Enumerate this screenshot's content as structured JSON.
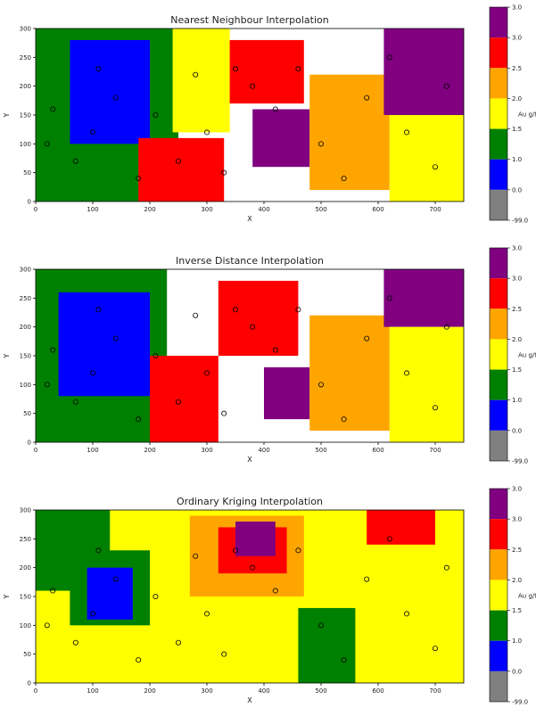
{
  "chart_data": [
    {
      "type": "heatmap",
      "title": "Nearest Neighbour Interpolation",
      "xlabel": "X",
      "ylabel": "Y",
      "xlim": [
        0,
        750
      ],
      "ylim": [
        0,
        300
      ],
      "xticks": [
        0,
        100,
        200,
        300,
        400,
        500,
        600,
        700
      ],
      "yticks": [
        0,
        50,
        100,
        150,
        200,
        250,
        300
      ],
      "xtick_labels": [
        "0",
        "100",
        "200",
        "300",
        "400",
        "500",
        "600",
        "700"
      ],
      "ytick_labels": [
        "0",
        "50",
        "100",
        "150",
        "200",
        "250",
        "300"
      ],
      "colorbar": {
        "label": "Au g/t",
        "tick_labels": [
          "3.0",
          "3.0",
          "2.5",
          "2.0",
          "1.5",
          "1.0",
          "0.0",
          "-99.0"
        ],
        "bins": [
          {
            "range": [
              3.0,
              3.0
            ],
            "color": "#800080"
          },
          {
            "range": [
              2.5,
              3.0
            ],
            "color": "#ff0000"
          },
          {
            "range": [
              2.0,
              2.5
            ],
            "color": "#ffa500"
          },
          {
            "range": [
              1.5,
              2.0
            ],
            "color": "#ffff00"
          },
          {
            "range": [
              1.0,
              1.5
            ],
            "color": "#008000"
          },
          {
            "range": [
              0.0,
              1.0
            ],
            "color": "#0000ff"
          },
          {
            "range": [
              -99.0,
              0.0
            ],
            "color": "#808080"
          }
        ]
      },
      "regions": [
        {
          "x": [
            0,
            250
          ],
          "y": [
            0,
            300
          ],
          "grade": "1.0 - 1.5"
        },
        {
          "x": [
            60,
            200
          ],
          "y": [
            100,
            280
          ],
          "grade": "0.0 - 1.0"
        },
        {
          "x": [
            180,
            330
          ],
          "y": [
            0,
            110
          ],
          "grade": "2.5 - 3.0"
        },
        {
          "x": [
            240,
            340
          ],
          "y": [
            120,
            300
          ],
          "grade": "1.5 - 2.0"
        },
        {
          "x": [
            340,
            470
          ],
          "y": [
            170,
            280
          ],
          "grade": "2.5 - 3.0"
        },
        {
          "x": [
            380,
            480
          ],
          "y": [
            60,
            160
          ],
          "grade": "3.0"
        },
        {
          "x": [
            480,
            620
          ],
          "y": [
            20,
            220
          ],
          "grade": "2.0 - 2.5"
        },
        {
          "x": [
            610,
            750
          ],
          "y": [
            150,
            300
          ],
          "grade": "3.0"
        },
        {
          "x": [
            620,
            750
          ],
          "y": [
            0,
            150
          ],
          "grade": "1.5 - 2.0"
        }
      ],
      "samples": [
        [
          20,
          100
        ],
        [
          30,
          160
        ],
        [
          70,
          70
        ],
        [
          100,
          120
        ],
        [
          110,
          230
        ],
        [
          140,
          180
        ],
        [
          180,
          40
        ],
        [
          210,
          150
        ],
        [
          250,
          70
        ],
        [
          280,
          220
        ],
        [
          300,
          120
        ],
        [
          330,
          50
        ],
        [
          350,
          230
        ],
        [
          380,
          200
        ],
        [
          420,
          160
        ],
        [
          460,
          230
        ],
        [
          500,
          100
        ],
        [
          540,
          40
        ],
        [
          580,
          180
        ],
        [
          620,
          250
        ],
        [
          650,
          120
        ],
        [
          700,
          60
        ],
        [
          720,
          200
        ]
      ]
    },
    {
      "type": "heatmap",
      "title": "Inverse Distance Interpolation",
      "xlabel": "X",
      "ylabel": "Y",
      "xlim": [
        0,
        750
      ],
      "ylim": [
        0,
        300
      ],
      "xticks": [
        0,
        100,
        200,
        300,
        400,
        500,
        600,
        700
      ],
      "yticks": [
        0,
        50,
        100,
        150,
        200,
        250,
        300
      ],
      "xtick_labels": [
        "0",
        "100",
        "200",
        "300",
        "400",
        "500",
        "600",
        "700"
      ],
      "ytick_labels": [
        "0",
        "50",
        "100",
        "150",
        "200",
        "250",
        "300"
      ],
      "colorbar": {
        "label": "Au g/t",
        "tick_labels": [
          "3.0",
          "3.0",
          "2.5",
          "2.0",
          "1.5",
          "1.0",
          "0.0",
          "-99.0"
        ],
        "bins": [
          {
            "range": [
              3.0,
              3.0
            ],
            "color": "#800080"
          },
          {
            "range": [
              2.5,
              3.0
            ],
            "color": "#ff0000"
          },
          {
            "range": [
              2.0,
              2.5
            ],
            "color": "#ffa500"
          },
          {
            "range": [
              1.5,
              2.0
            ],
            "color": "#ffff00"
          },
          {
            "range": [
              1.0,
              1.5
            ],
            "color": "#008000"
          },
          {
            "range": [
              0.0,
              1.0
            ],
            "color": "#0000ff"
          },
          {
            "range": [
              -99.0,
              0.0
            ],
            "color": "#808080"
          }
        ]
      },
      "regions": [
        {
          "x": [
            0,
            230
          ],
          "y": [
            0,
            300
          ],
          "grade": "1.0 - 1.5"
        },
        {
          "x": [
            40,
            200
          ],
          "y": [
            80,
            260
          ],
          "grade": "0.0 - 1.0"
        },
        {
          "x": [
            200,
            320
          ],
          "y": [
            0,
            150
          ],
          "grade": "2.5 - 3.0"
        },
        {
          "x": [
            320,
            460
          ],
          "y": [
            150,
            280
          ],
          "grade": "2.5 - 3.0"
        },
        {
          "x": [
            400,
            480
          ],
          "y": [
            40,
            130
          ],
          "grade": "3.0"
        },
        {
          "x": [
            480,
            620
          ],
          "y": [
            20,
            220
          ],
          "grade": "2.0 - 2.5"
        },
        {
          "x": [
            610,
            750
          ],
          "y": [
            200,
            300
          ],
          "grade": "3.0"
        },
        {
          "x": [
            620,
            750
          ],
          "y": [
            0,
            200
          ],
          "grade": "1.5 - 2.0"
        }
      ],
      "samples": [
        [
          20,
          100
        ],
        [
          30,
          160
        ],
        [
          70,
          70
        ],
        [
          100,
          120
        ],
        [
          110,
          230
        ],
        [
          140,
          180
        ],
        [
          180,
          40
        ],
        [
          210,
          150
        ],
        [
          250,
          70
        ],
        [
          280,
          220
        ],
        [
          300,
          120
        ],
        [
          330,
          50
        ],
        [
          350,
          230
        ],
        [
          380,
          200
        ],
        [
          420,
          160
        ],
        [
          460,
          230
        ],
        [
          500,
          100
        ],
        [
          540,
          40
        ],
        [
          580,
          180
        ],
        [
          620,
          250
        ],
        [
          650,
          120
        ],
        [
          700,
          60
        ],
        [
          720,
          200
        ]
      ]
    },
    {
      "type": "heatmap",
      "title": "Ordinary Kriging Interpolation",
      "xlabel": "X",
      "ylabel": "Y",
      "xlim": [
        0,
        750
      ],
      "ylim": [
        0,
        300
      ],
      "xticks": [
        0,
        100,
        200,
        300,
        400,
        500,
        600,
        700
      ],
      "yticks": [
        0,
        50,
        100,
        150,
        200,
        250,
        300
      ],
      "xtick_labels": [
        "0",
        "100",
        "200",
        "300",
        "400",
        "500",
        "600",
        "700"
      ],
      "ytick_labels": [
        "0",
        "50",
        "100",
        "150",
        "200",
        "250",
        "300"
      ],
      "colorbar": {
        "label": "Au g/t",
        "tick_labels": [
          "3.0",
          "3.0",
          "2.5",
          "2.0",
          "1.5",
          "1.0",
          "0.0",
          "-99.0"
        ],
        "bins": [
          {
            "range": [
              3.0,
              3.0
            ],
            "color": "#800080"
          },
          {
            "range": [
              2.5,
              3.0
            ],
            "color": "#ff0000"
          },
          {
            "range": [
              2.0,
              2.5
            ],
            "color": "#ffa500"
          },
          {
            "range": [
              1.5,
              2.0
            ],
            "color": "#ffff00"
          },
          {
            "range": [
              1.0,
              1.5
            ],
            "color": "#008000"
          },
          {
            "range": [
              0.0,
              1.0
            ],
            "color": "#0000ff"
          },
          {
            "range": [
              -99.0,
              0.0
            ],
            "color": "#808080"
          }
        ]
      },
      "regions": [
        {
          "x": [
            0,
            750
          ],
          "y": [
            0,
            300
          ],
          "grade": "1.5 - 2.0"
        },
        {
          "x": [
            0,
            130
          ],
          "y": [
            160,
            300
          ],
          "grade": "1.0 - 1.5"
        },
        {
          "x": [
            60,
            200
          ],
          "y": [
            100,
            230
          ],
          "grade": "1.0 - 1.5"
        },
        {
          "x": [
            90,
            170
          ],
          "y": [
            110,
            200
          ],
          "grade": "0.0 - 1.0"
        },
        {
          "x": [
            270,
            470
          ],
          "y": [
            150,
            290
          ],
          "grade": "2.0 - 2.5"
        },
        {
          "x": [
            320,
            440
          ],
          "y": [
            190,
            270
          ],
          "grade": "2.5 - 3.0"
        },
        {
          "x": [
            350,
            420
          ],
          "y": [
            220,
            280
          ],
          "grade": "3.0"
        },
        {
          "x": [
            460,
            560
          ],
          "y": [
            0,
            130
          ],
          "grade": "1.0 - 1.5"
        },
        {
          "x": [
            580,
            700
          ],
          "y": [
            240,
            300
          ],
          "grade": "2.5 - 3.0"
        }
      ],
      "samples": [
        [
          20,
          100
        ],
        [
          30,
          160
        ],
        [
          70,
          70
        ],
        [
          100,
          120
        ],
        [
          110,
          230
        ],
        [
          140,
          180
        ],
        [
          180,
          40
        ],
        [
          210,
          150
        ],
        [
          250,
          70
        ],
        [
          280,
          220
        ],
        [
          300,
          120
        ],
        [
          330,
          50
        ],
        [
          350,
          230
        ],
        [
          380,
          200
        ],
        [
          420,
          160
        ],
        [
          460,
          230
        ],
        [
          500,
          100
        ],
        [
          540,
          40
        ],
        [
          580,
          180
        ],
        [
          620,
          250
        ],
        [
          650,
          120
        ],
        [
          700,
          60
        ],
        [
          720,
          200
        ]
      ]
    }
  ]
}
